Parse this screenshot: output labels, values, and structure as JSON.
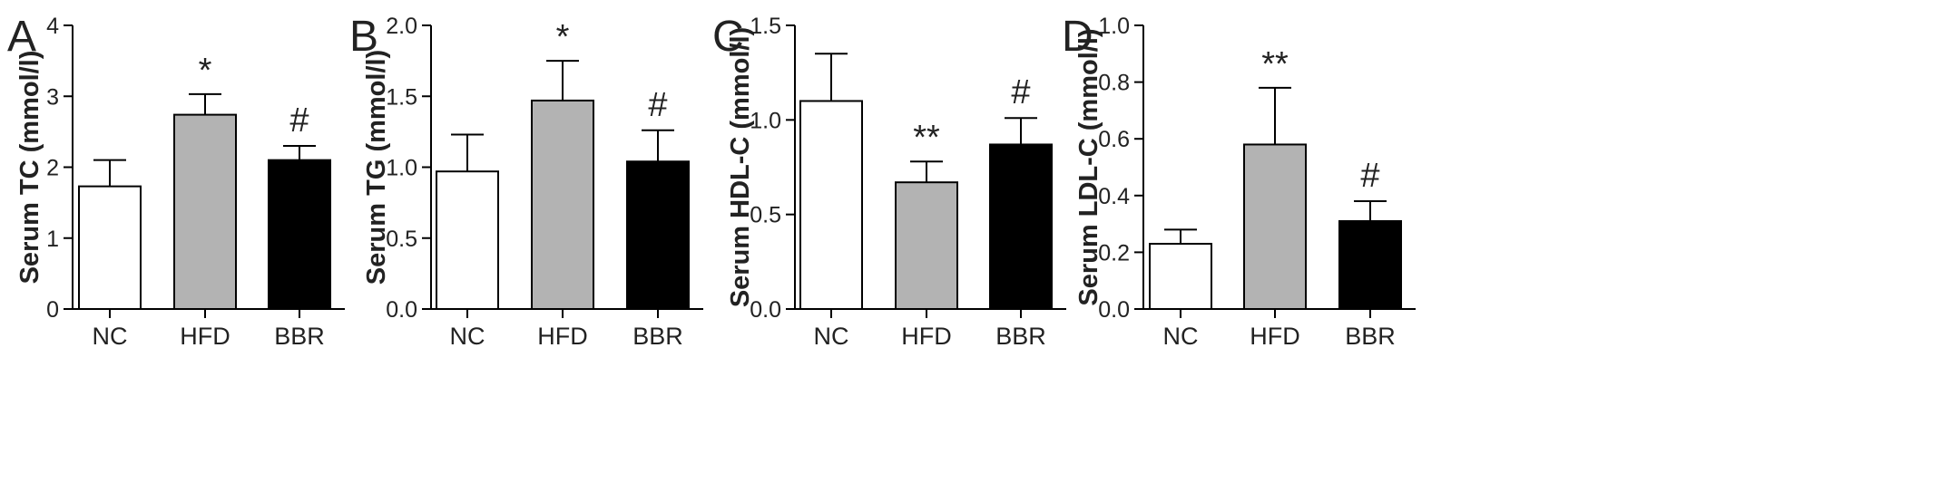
{
  "figure": {
    "categories": [
      "NC",
      "HFD",
      "BBR"
    ],
    "bar_colors": [
      "#ffffff",
      "#b3b3b3",
      "#000000"
    ],
    "stroke_color": "#000000"
  },
  "chart_data": [
    {
      "type": "bar",
      "panel": "A",
      "ylabel": "Serum TC (mmol/l)",
      "categories": [
        "NC",
        "HFD",
        "BBR"
      ],
      "values": [
        1.73,
        2.74,
        2.1
      ],
      "errors": [
        0.37,
        0.29,
        0.2
      ],
      "ylim": [
        0,
        4
      ],
      "yticks": [
        "0",
        "1",
        "2",
        "3",
        "4"
      ],
      "annotations": [
        "",
        "*",
        "#"
      ]
    },
    {
      "type": "bar",
      "panel": "B",
      "ylabel": "Serum TG (mmol/l)",
      "categories": [
        "NC",
        "HFD",
        "BBR"
      ],
      "values": [
        0.97,
        1.47,
        1.04
      ],
      "errors": [
        0.26,
        0.28,
        0.22
      ],
      "ylim": [
        0,
        2
      ],
      "yticks": [
        "0.0",
        "0.5",
        "1.0",
        "1.5",
        "2.0"
      ],
      "annotations": [
        "",
        "*",
        "#"
      ]
    },
    {
      "type": "bar",
      "panel": "C",
      "ylabel": "Serum HDL-C (mmol/l)",
      "categories": [
        "NC",
        "HFD",
        "BBR"
      ],
      "values": [
        1.1,
        0.67,
        0.87
      ],
      "errors": [
        0.25,
        0.11,
        0.14
      ],
      "ylim": [
        0,
        1.5
      ],
      "yticks": [
        "0.0",
        "0.5",
        "1.0",
        "1.5"
      ],
      "annotations": [
        "",
        "**",
        "#"
      ]
    },
    {
      "type": "bar",
      "panel": "D",
      "ylabel": "Serum LDL-C (mmol/l)",
      "categories": [
        "NC",
        "HFD",
        "BBR"
      ],
      "values": [
        0.23,
        0.58,
        0.31
      ],
      "errors": [
        0.05,
        0.2,
        0.07
      ],
      "ylim": [
        0,
        1.0
      ],
      "yticks": [
        "0.0",
        "0.2",
        "0.4",
        "0.6",
        "0.8",
        "1.0"
      ],
      "annotations": [
        "",
        "**",
        "#"
      ]
    }
  ]
}
